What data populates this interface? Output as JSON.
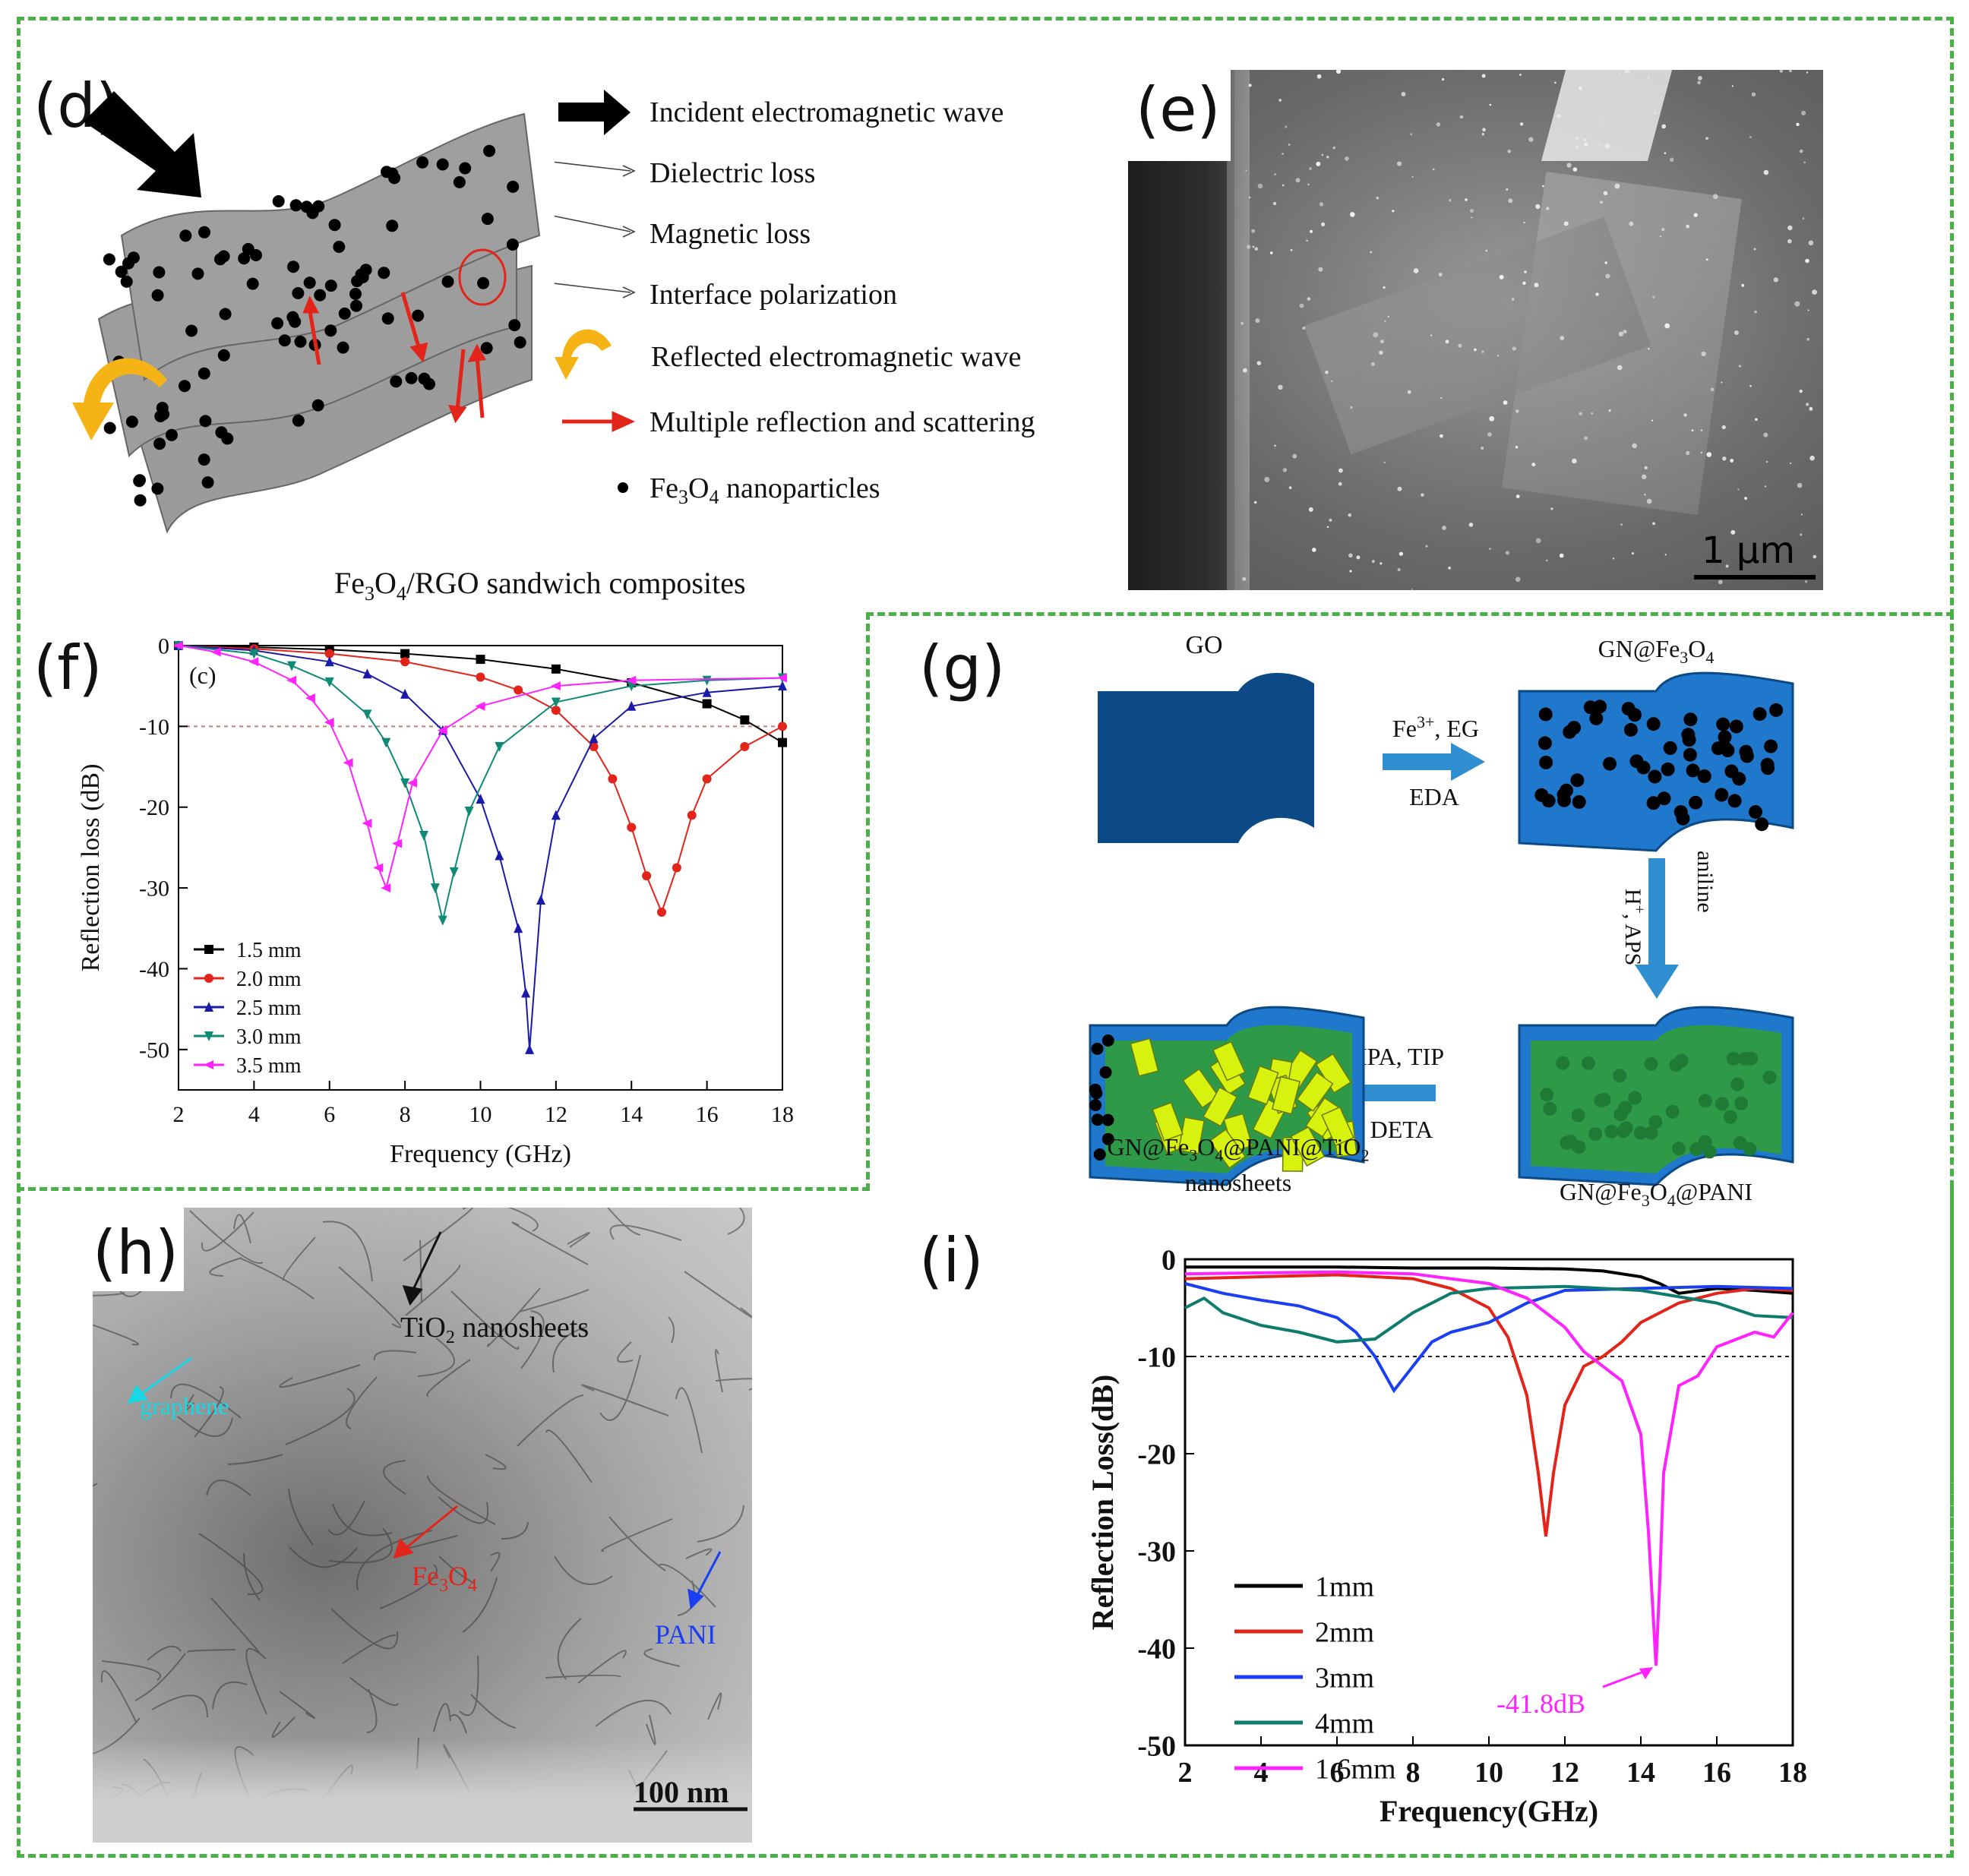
{
  "panels": {
    "d": "(d)",
    "e": "(e)",
    "f": "(f)",
    "g": "(g)",
    "h": "(h)",
    "i": "(i)"
  },
  "legend_d": {
    "incident": "Incident electromagnetic wave",
    "dielectric": "Dielectric loss",
    "magnetic": "Magnetic loss",
    "interface": "Interface polarization",
    "reflected": "Reflected electromagnetic wave",
    "multiple": "Multiple reflection and scattering",
    "nano_pre": "Fe",
    "nano_s1": "3",
    "nano_mid": "O",
    "nano_s2": "4",
    "nano_post": " nanoparticles"
  },
  "caption_d": {
    "pre": "Fe",
    "s1": "3",
    "mid": "O",
    "s2": "4",
    "post": "/RGO sandwich composites"
  },
  "scalebar_e": "1 µm",
  "scheme_g": {
    "go": "GO",
    "gn_fe3o4": "GN@Fe3O4",
    "step1_top": "Fe3+, EG",
    "step1_bottom": "EDA",
    "step2_left": "H+, APS",
    "step2_right": "aniline",
    "step3_top": "IPA, TIP",
    "step3_bottom": "DETA",
    "gn_pani": "GN@Fe3O4@PANI",
    "final_line1": "GN@Fe3O4@PANI@TiO2",
    "final_line2": "nanosheets"
  },
  "labels_h": {
    "tio2": "TiO2 nanosheets",
    "graphene": "graphene",
    "fe3o4": "Fe3O4",
    "pani": "PANI",
    "scalebar": "100 nm"
  },
  "colors": {
    "frame": "#4cb04a",
    "red": "#e3241b",
    "arrow_yellow": "#f5b316",
    "go_blue": "#0b4a86",
    "gn_blue": "#1f78cc",
    "green": "#2e9a48",
    "tio2": "#d8f20f",
    "magenta": "#ff22ff"
  },
  "chart_data": [
    {
      "type": "line",
      "panel": "f",
      "inset_label": "(c)",
      "xlabel": "Frequency (GHz)",
      "ylabel": "Reflection loss (dB)",
      "xlim": [
        2,
        18
      ],
      "ylim": [
        -55,
        0
      ],
      "xticks": [
        "2",
        "4",
        "6",
        "8",
        "10",
        "12",
        "14",
        "16",
        "18"
      ],
      "yticks": [
        "0",
        "-10",
        "-20",
        "-30",
        "-40",
        "-50"
      ],
      "reference_line": -10,
      "legend_position": "bottom-left",
      "series": [
        {
          "name": "1.5 mm",
          "color": "#000000",
          "marker": "square",
          "x": [
            2,
            4,
            6,
            8,
            10,
            12,
            14,
            16,
            17,
            18
          ],
          "y": [
            0,
            -0.2,
            -0.5,
            -1.0,
            -1.7,
            -2.9,
            -4.6,
            -7.2,
            -9.2,
            -12
          ]
        },
        {
          "name": "2.0 mm",
          "color": "#e3241b",
          "marker": "circle",
          "x": [
            2,
            4,
            6,
            8,
            10,
            11,
            12,
            13,
            13.5,
            14,
            14.4,
            14.8,
            15.2,
            15.6,
            16,
            17,
            18
          ],
          "y": [
            0,
            -0.4,
            -1.0,
            -2.0,
            -3.9,
            -5.5,
            -8.0,
            -12.5,
            -16.5,
            -22.5,
            -28.5,
            -33,
            -27.5,
            -21,
            -16.5,
            -12.5,
            -10
          ]
        },
        {
          "name": "2.5 mm",
          "color": "#1a1aa8",
          "marker": "triangle-up",
          "x": [
            2,
            4,
            6,
            7,
            8,
            9,
            10,
            10.5,
            11,
            11.2,
            11.3,
            11.6,
            12,
            13,
            14,
            16,
            18
          ],
          "y": [
            0,
            -0.6,
            -2.0,
            -3.5,
            -6.0,
            -10.5,
            -19,
            -26,
            -35,
            -43,
            -50,
            -31.5,
            -21,
            -11.5,
            -7.5,
            -5.8,
            -5
          ]
        },
        {
          "name": "3.0 mm",
          "color": "#0e8a75",
          "marker": "triangle-down",
          "x": [
            2,
            4,
            5,
            6,
            7,
            7.5,
            8,
            8.5,
            8.8,
            9.0,
            9.3,
            9.7,
            10.5,
            12,
            14,
            16,
            18
          ],
          "y": [
            0,
            -1.0,
            -2.5,
            -4.5,
            -8.5,
            -12,
            -17,
            -23.5,
            -30,
            -34,
            -28,
            -20.5,
            -12.5,
            -7,
            -5,
            -4.3,
            -4
          ]
        },
        {
          "name": "3.5 mm",
          "color": "#ff22ff",
          "marker": "triangle-left",
          "x": [
            2,
            3,
            4,
            5,
            5.5,
            6,
            6.5,
            7,
            7.3,
            7.5,
            7.8,
            8.2,
            9,
            10,
            12,
            14,
            18
          ],
          "y": [
            0,
            -0.8,
            -2.0,
            -4.3,
            -6.5,
            -9.5,
            -14.5,
            -22,
            -27.5,
            -30,
            -24.5,
            -17,
            -10.5,
            -7.5,
            -5,
            -4.3,
            -4
          ]
        }
      ]
    },
    {
      "type": "line",
      "panel": "i",
      "xlabel": "Frequency(GHz)",
      "ylabel": "Reflection  Loss(dB)",
      "xlim": [
        2,
        18
      ],
      "ylim": [
        -50,
        0
      ],
      "xticks": [
        "2",
        "4",
        "6",
        "8",
        "10",
        "12",
        "14",
        "16",
        "18"
      ],
      "yticks": [
        "0",
        "-10",
        "-20",
        "-30",
        "-40",
        "-50"
      ],
      "reference_line": -10,
      "legend_position": "bottom-left",
      "annotation": "-41.8dB",
      "series": [
        {
          "name": "1mm",
          "color": "#000000",
          "x": [
            2,
            4,
            6,
            8,
            10,
            12,
            13,
            14,
            14.5,
            15,
            16,
            17,
            18
          ],
          "y": [
            -0.8,
            -0.8,
            -0.8,
            -0.9,
            -0.9,
            -1.0,
            -1.2,
            -1.8,
            -2.5,
            -3.5,
            -3.0,
            -3.2,
            -3.5
          ]
        },
        {
          "name": "2mm",
          "color": "#e3241b",
          "x": [
            2,
            4,
            6,
            8,
            9,
            10,
            10.5,
            11,
            11.3,
            11.5,
            11.7,
            12,
            12.5,
            13,
            13.5,
            14,
            15,
            16,
            17,
            18
          ],
          "y": [
            -2.0,
            -1.8,
            -1.6,
            -2.0,
            -3.0,
            -5.0,
            -8.0,
            -14,
            -22,
            -28.5,
            -22,
            -15,
            -11,
            -10,
            -8.5,
            -6.5,
            -4.5,
            -3.5,
            -3.0,
            -3.2
          ]
        },
        {
          "name": "3mm",
          "color": "#1a3ef2",
          "x": [
            2,
            3,
            4,
            5,
            6,
            6.5,
            7,
            7.5,
            8,
            8.5,
            9,
            10,
            11,
            12,
            14,
            16,
            18
          ],
          "y": [
            -2.5,
            -3.5,
            -4.2,
            -4.8,
            -6.0,
            -7.5,
            -10,
            -13.5,
            -11,
            -8.5,
            -7.5,
            -6.5,
            -4.5,
            -3.2,
            -3.0,
            -2.8,
            -3.0
          ]
        },
        {
          "name": "4mm",
          "color": "#0e7b6e",
          "x": [
            2,
            2.5,
            3,
            4,
            5,
            6,
            7,
            8,
            9,
            10,
            12,
            14,
            16,
            17,
            18
          ],
          "y": [
            -5.0,
            -4.0,
            -5.5,
            -6.8,
            -7.5,
            -8.5,
            -8.2,
            -5.5,
            -3.5,
            -3.0,
            -2.8,
            -3.2,
            -4.5,
            -5.8,
            -6.0
          ]
        },
        {
          "name": "1.6mm",
          "color": "#ff22ff",
          "x": [
            2,
            4,
            6,
            8,
            10,
            11,
            12,
            12.5,
            13,
            13.5,
            14,
            14.2,
            14.4,
            14.5,
            14.6,
            15,
            15.5,
            16,
            17,
            17.5,
            18
          ],
          "y": [
            -1.5,
            -1.4,
            -1.3,
            -1.5,
            -2.5,
            -4.0,
            -7.0,
            -9.5,
            -11,
            -12.5,
            -18,
            -28,
            -41.8,
            -33,
            -22,
            -13,
            -12,
            -9.0,
            -7.5,
            -8.0,
            -5.5
          ]
        }
      ]
    }
  ]
}
